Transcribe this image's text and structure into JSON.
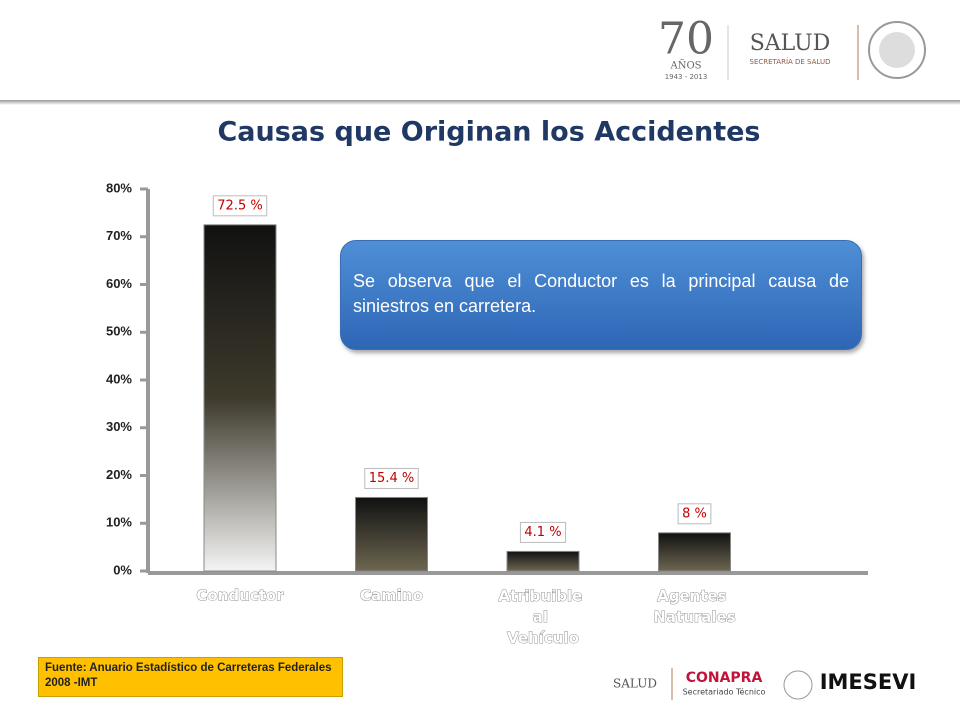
{
  "header": {
    "logos": [
      "70",
      "AÑOS",
      "1943 - 2013",
      "SALUD",
      "SECRETARÍA DE SALUD"
    ]
  },
  "chart_data": {
    "type": "bar",
    "title": "Causas que Originan los Accidentes",
    "categories": [
      "Conductor",
      "Camino",
      "Atribuible al Vehículo",
      "Agentes Naturales"
    ],
    "values": [
      72.5,
      15.4,
      4.1,
      8
    ],
    "value_labels": [
      "72.5 %",
      "15.4 %",
      "4.1 %",
      "8 %"
    ],
    "ylim": [
      0,
      80
    ],
    "yticks": [
      {
        "value": 0,
        "label": "0%"
      },
      {
        "value": 10,
        "label": "10%"
      },
      {
        "value": 20,
        "label": "20%"
      },
      {
        "value": 30,
        "label": "30%"
      },
      {
        "value": 40,
        "label": "40%"
      },
      {
        "value": 50,
        "label": "50%"
      },
      {
        "value": 60,
        "label": "60%"
      },
      {
        "value": 70,
        "label": "70%"
      },
      {
        "value": 80,
        "label": "80%"
      }
    ],
    "grid": false
  },
  "callout": "Se observa que el Conductor es la principal causa de siniestros en carretera.",
  "source": "Fuente: Anuario Estadístico de Carreteras Federales 2008 -IMT",
  "footer": {
    "logos": [
      "SALUD",
      "CONAPRA",
      "Secretariado Técnico",
      "IMESEVI"
    ]
  }
}
